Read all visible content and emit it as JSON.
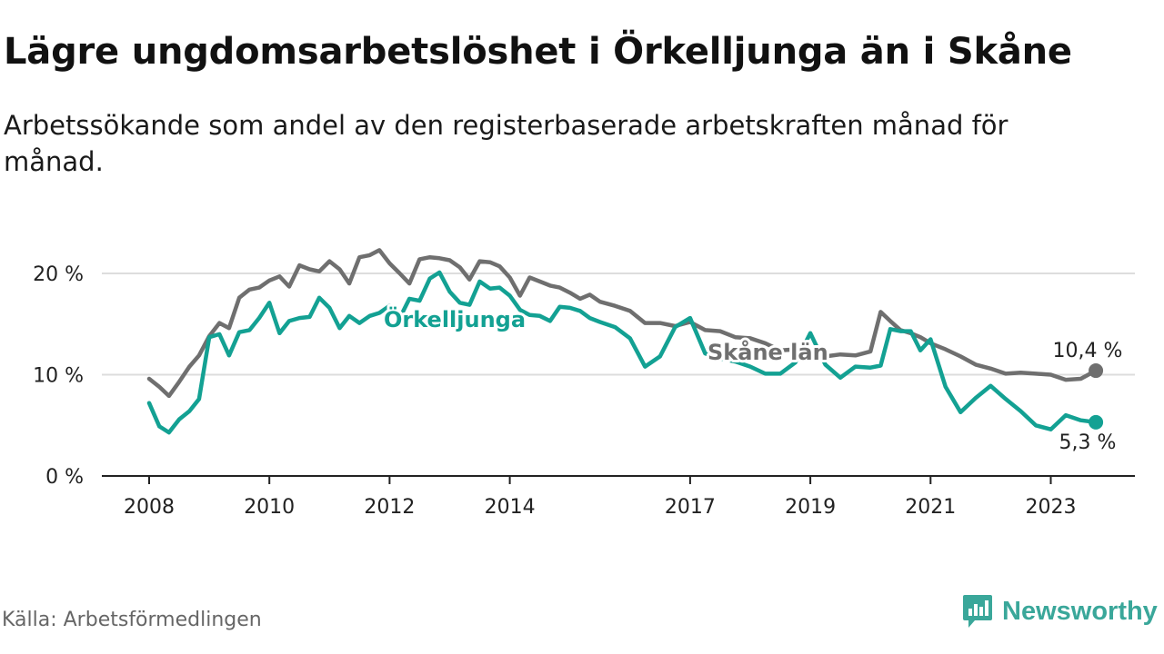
{
  "header": {
    "title": "Lägre ungdomsarbetslöshet i Örkelljunga än i Skåne",
    "subtitle": "Arbetssökande som andel av den registerbaserade arbetskraften månad för månad."
  },
  "footer": {
    "source": "Källa: Arbetsförmedlingen",
    "brand": "Newsworthy"
  },
  "colors": {
    "orkelljunga": "#13a193",
    "skane": "#6f6f6f",
    "grid": "#dddddd",
    "axis": "#222222"
  },
  "chart_data": {
    "type": "line",
    "title": "Lägre ungdomsarbetslöshet i Örkelljunga än i Skåne",
    "xlabel": "",
    "ylabel": "",
    "ylim": [
      0,
      22
    ],
    "yticks": [
      0,
      10,
      20
    ],
    "ytick_labels": [
      "0 %",
      "10 %",
      "20 %"
    ],
    "xrange": [
      2007.5,
      2024.8
    ],
    "xticks": [
      2008,
      2010,
      2012,
      2014,
      2017,
      2019,
      2021,
      2023
    ],
    "xtick_labels": [
      "2008",
      "2010",
      "2012",
      "2014",
      "2017",
      "2019",
      "2021",
      "2023"
    ],
    "grid": true,
    "series": [
      {
        "name": "Skåne län",
        "label": "Skåne län",
        "end_label": "10,4 %",
        "x": [
          2008.0,
          2008.17,
          2008.33,
          2008.5,
          2008.67,
          2008.83,
          2009.0,
          2009.17,
          2009.33,
          2009.5,
          2009.67,
          2009.83,
          2010.0,
          2010.17,
          2010.33,
          2010.5,
          2010.67,
          2010.83,
          2011.0,
          2011.17,
          2011.33,
          2011.5,
          2011.67,
          2011.83,
          2012.0,
          2012.17,
          2012.33,
          2012.5,
          2012.67,
          2012.83,
          2013.0,
          2013.17,
          2013.33,
          2013.5,
          2013.67,
          2013.83,
          2014.0,
          2014.17,
          2014.33,
          2014.5,
          2014.67,
          2014.83,
          2015.0,
          2015.17,
          2015.33,
          2015.5,
          2015.75,
          2016.0,
          2016.25,
          2016.5,
          2016.75,
          2017.0,
          2017.25,
          2017.5,
          2017.75,
          2018.0,
          2018.25,
          2018.5,
          2018.75,
          2019.0,
          2019.25,
          2019.5,
          2019.75,
          2020.0,
          2020.17,
          2020.33,
          2020.5,
          2020.67,
          2020.83,
          2021.0,
          2021.25,
          2021.5,
          2021.75,
          2022.0,
          2022.25,
          2022.5,
          2022.75,
          2023.0,
          2023.25,
          2023.5,
          2023.75
        ],
        "values": [
          9.6,
          8.8,
          7.9,
          9.3,
          10.8,
          11.9,
          13.8,
          15.1,
          14.6,
          17.6,
          18.4,
          18.6,
          19.3,
          19.7,
          18.7,
          20.8,
          20.4,
          20.2,
          21.2,
          20.4,
          19.0,
          21.6,
          21.8,
          22.3,
          21.0,
          20.0,
          19.0,
          21.4,
          21.6,
          21.5,
          21.3,
          20.6,
          19.4,
          21.2,
          21.1,
          20.7,
          19.6,
          17.8,
          19.6,
          19.2,
          18.8,
          18.6,
          18.1,
          17.5,
          17.9,
          17.2,
          16.8,
          16.3,
          15.1,
          15.1,
          14.8,
          15.2,
          14.4,
          14.3,
          13.7,
          13.6,
          13.1,
          12.4,
          12.5,
          12.2,
          11.8,
          12.0,
          11.9,
          12.3,
          16.2,
          15.3,
          14.4,
          14.1,
          13.7,
          13.1,
          12.5,
          11.8,
          11.0,
          10.6,
          10.1,
          10.2,
          10.1,
          10.0,
          9.5,
          9.6,
          10.4
        ]
      },
      {
        "name": "Örkelljunga",
        "label": "Örkelljunga",
        "end_label": "5,3 %",
        "x": [
          2008.0,
          2008.17,
          2008.33,
          2008.5,
          2008.67,
          2008.83,
          2009.0,
          2009.17,
          2009.33,
          2009.5,
          2009.67,
          2009.83,
          2010.0,
          2010.17,
          2010.33,
          2010.5,
          2010.67,
          2010.83,
          2011.0,
          2011.17,
          2011.33,
          2011.5,
          2011.67,
          2011.83,
          2012.0,
          2012.17,
          2012.33,
          2012.5,
          2012.67,
          2012.83,
          2013.0,
          2013.17,
          2013.33,
          2013.5,
          2013.67,
          2013.83,
          2014.0,
          2014.17,
          2014.33,
          2014.5,
          2014.67,
          2014.83,
          2015.0,
          2015.17,
          2015.33,
          2015.5,
          2015.75,
          2016.0,
          2016.25,
          2016.5,
          2016.75,
          2017.0,
          2017.25,
          2017.5,
          2017.75,
          2018.0,
          2018.25,
          2018.5,
          2018.75,
          2019.0,
          2019.25,
          2019.5,
          2019.75,
          2020.0,
          2020.17,
          2020.33,
          2020.5,
          2020.67,
          2020.83,
          2021.0,
          2021.25,
          2021.5,
          2021.75,
          2022.0,
          2022.25,
          2022.5,
          2022.75,
          2023.0,
          2023.25,
          2023.5,
          2023.75
        ],
        "values": [
          7.2,
          4.9,
          4.3,
          5.6,
          6.4,
          7.6,
          13.7,
          14.0,
          11.9,
          14.2,
          14.4,
          15.6,
          17.1,
          14.1,
          15.3,
          15.6,
          15.7,
          17.6,
          16.6,
          14.6,
          15.8,
          15.1,
          15.8,
          16.1,
          16.8,
          15.6,
          17.5,
          17.3,
          19.5,
          20.1,
          18.2,
          17.1,
          16.9,
          19.2,
          18.5,
          18.6,
          17.8,
          16.4,
          15.9,
          15.8,
          15.3,
          16.7,
          16.6,
          16.3,
          15.6,
          15.2,
          14.7,
          13.6,
          10.8,
          11.8,
          14.7,
          15.6,
          12.1,
          11.6,
          11.3,
          10.8,
          10.1,
          10.1,
          11.2,
          14.1,
          11.0,
          9.7,
          10.8,
          10.7,
          10.9,
          14.5,
          14.3,
          14.3,
          12.4,
          13.5,
          8.8,
          6.3,
          7.7,
          8.9,
          7.6,
          6.4,
          5.0,
          4.6,
          6.0,
          5.5,
          5.3
        ]
      }
    ]
  }
}
